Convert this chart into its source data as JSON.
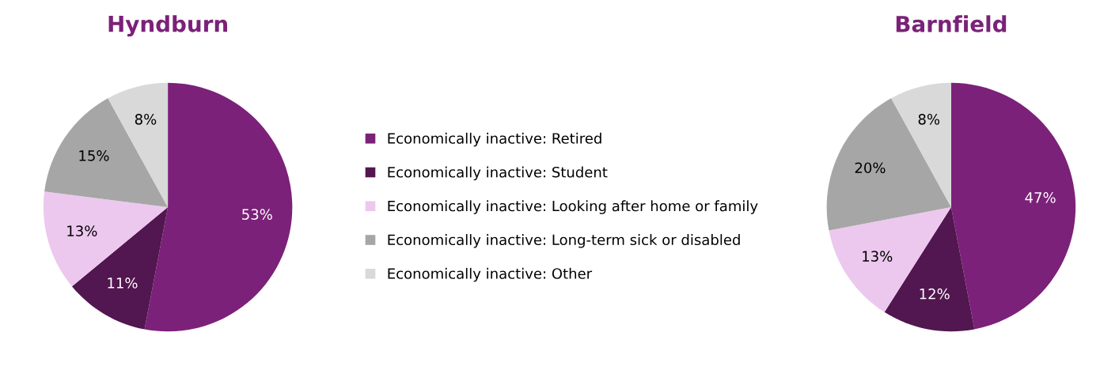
{
  "chart_data": [
    {
      "type": "pie",
      "title": "Hyndburn",
      "categories": [
        "Economically inactive: Retired",
        "Economically inactive: Student",
        "Economically inactive: Looking after home or family",
        "Economically inactive: Long-term sick or disabled",
        "Economically inactive: Other"
      ],
      "values": [
        53,
        11,
        13,
        15,
        8
      ],
      "value_labels": [
        "53%",
        "11%",
        "13%",
        "15%",
        "8%"
      ],
      "colors": [
        "#7b2179",
        "#521650",
        "#ecc8ee",
        "#a6a6a6",
        "#d9d9d9"
      ],
      "legend": "right"
    },
    {
      "type": "pie",
      "title": "Barnfield",
      "categories": [
        null,
        null,
        null,
        null,
        null
      ],
      "values": [
        47,
        12,
        13,
        20,
        8
      ],
      "value_labels": [
        "47%",
        "12%",
        "13%",
        "20%",
        "8%"
      ],
      "colors": [
        "#7b2179",
        "#521650",
        "#ecc8ee",
        "#a6a6a6",
        "#d9d9d9"
      ],
      "legend": false
    }
  ]
}
